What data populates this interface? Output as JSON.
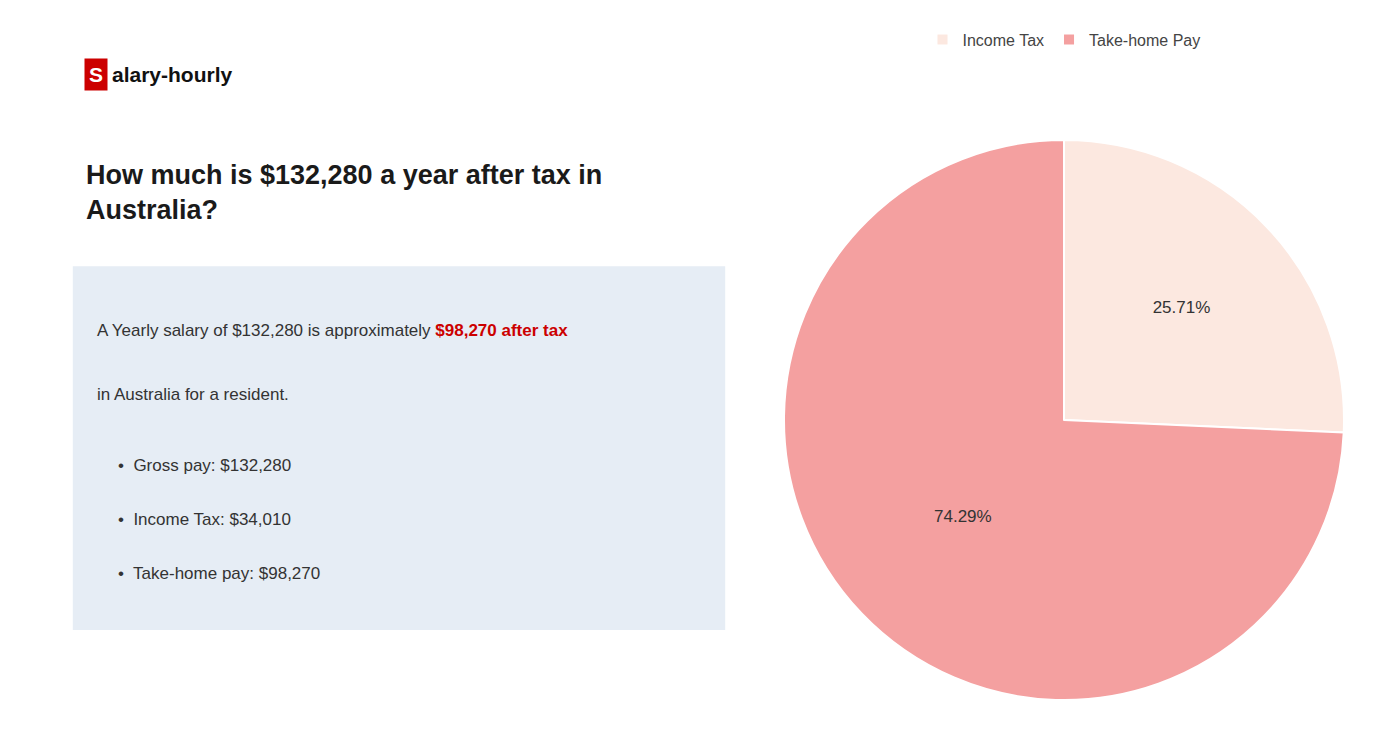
{
  "chart_data": {
    "type": "pie",
    "title": [
      "How much is $132,280 a year after tax in",
      "Australia?"
    ],
    "categories": [
      "Income Tax",
      "Take-home Pay"
    ],
    "values": [
      25.71,
      74.29
    ],
    "value_labels": [
      "25.71%",
      "74.29%"
    ],
    "colors": [
      "#fce8e0",
      "#f4a0a0"
    ],
    "data_labels": true,
    "legend": "top",
    "annotations": [
      "S",
      "alary-hourly",
      "A Yearly salary of $132,280 is approximately ",
      {
        "text": "$98,270 after tax",
        "color": "#cc0000"
      },
      "in Australia for a resident.",
      "•  Gross pay: $132,280",
      "•  Income Tax: $34,010",
      "•  Take-home pay: $98,270"
    ]
  }
}
